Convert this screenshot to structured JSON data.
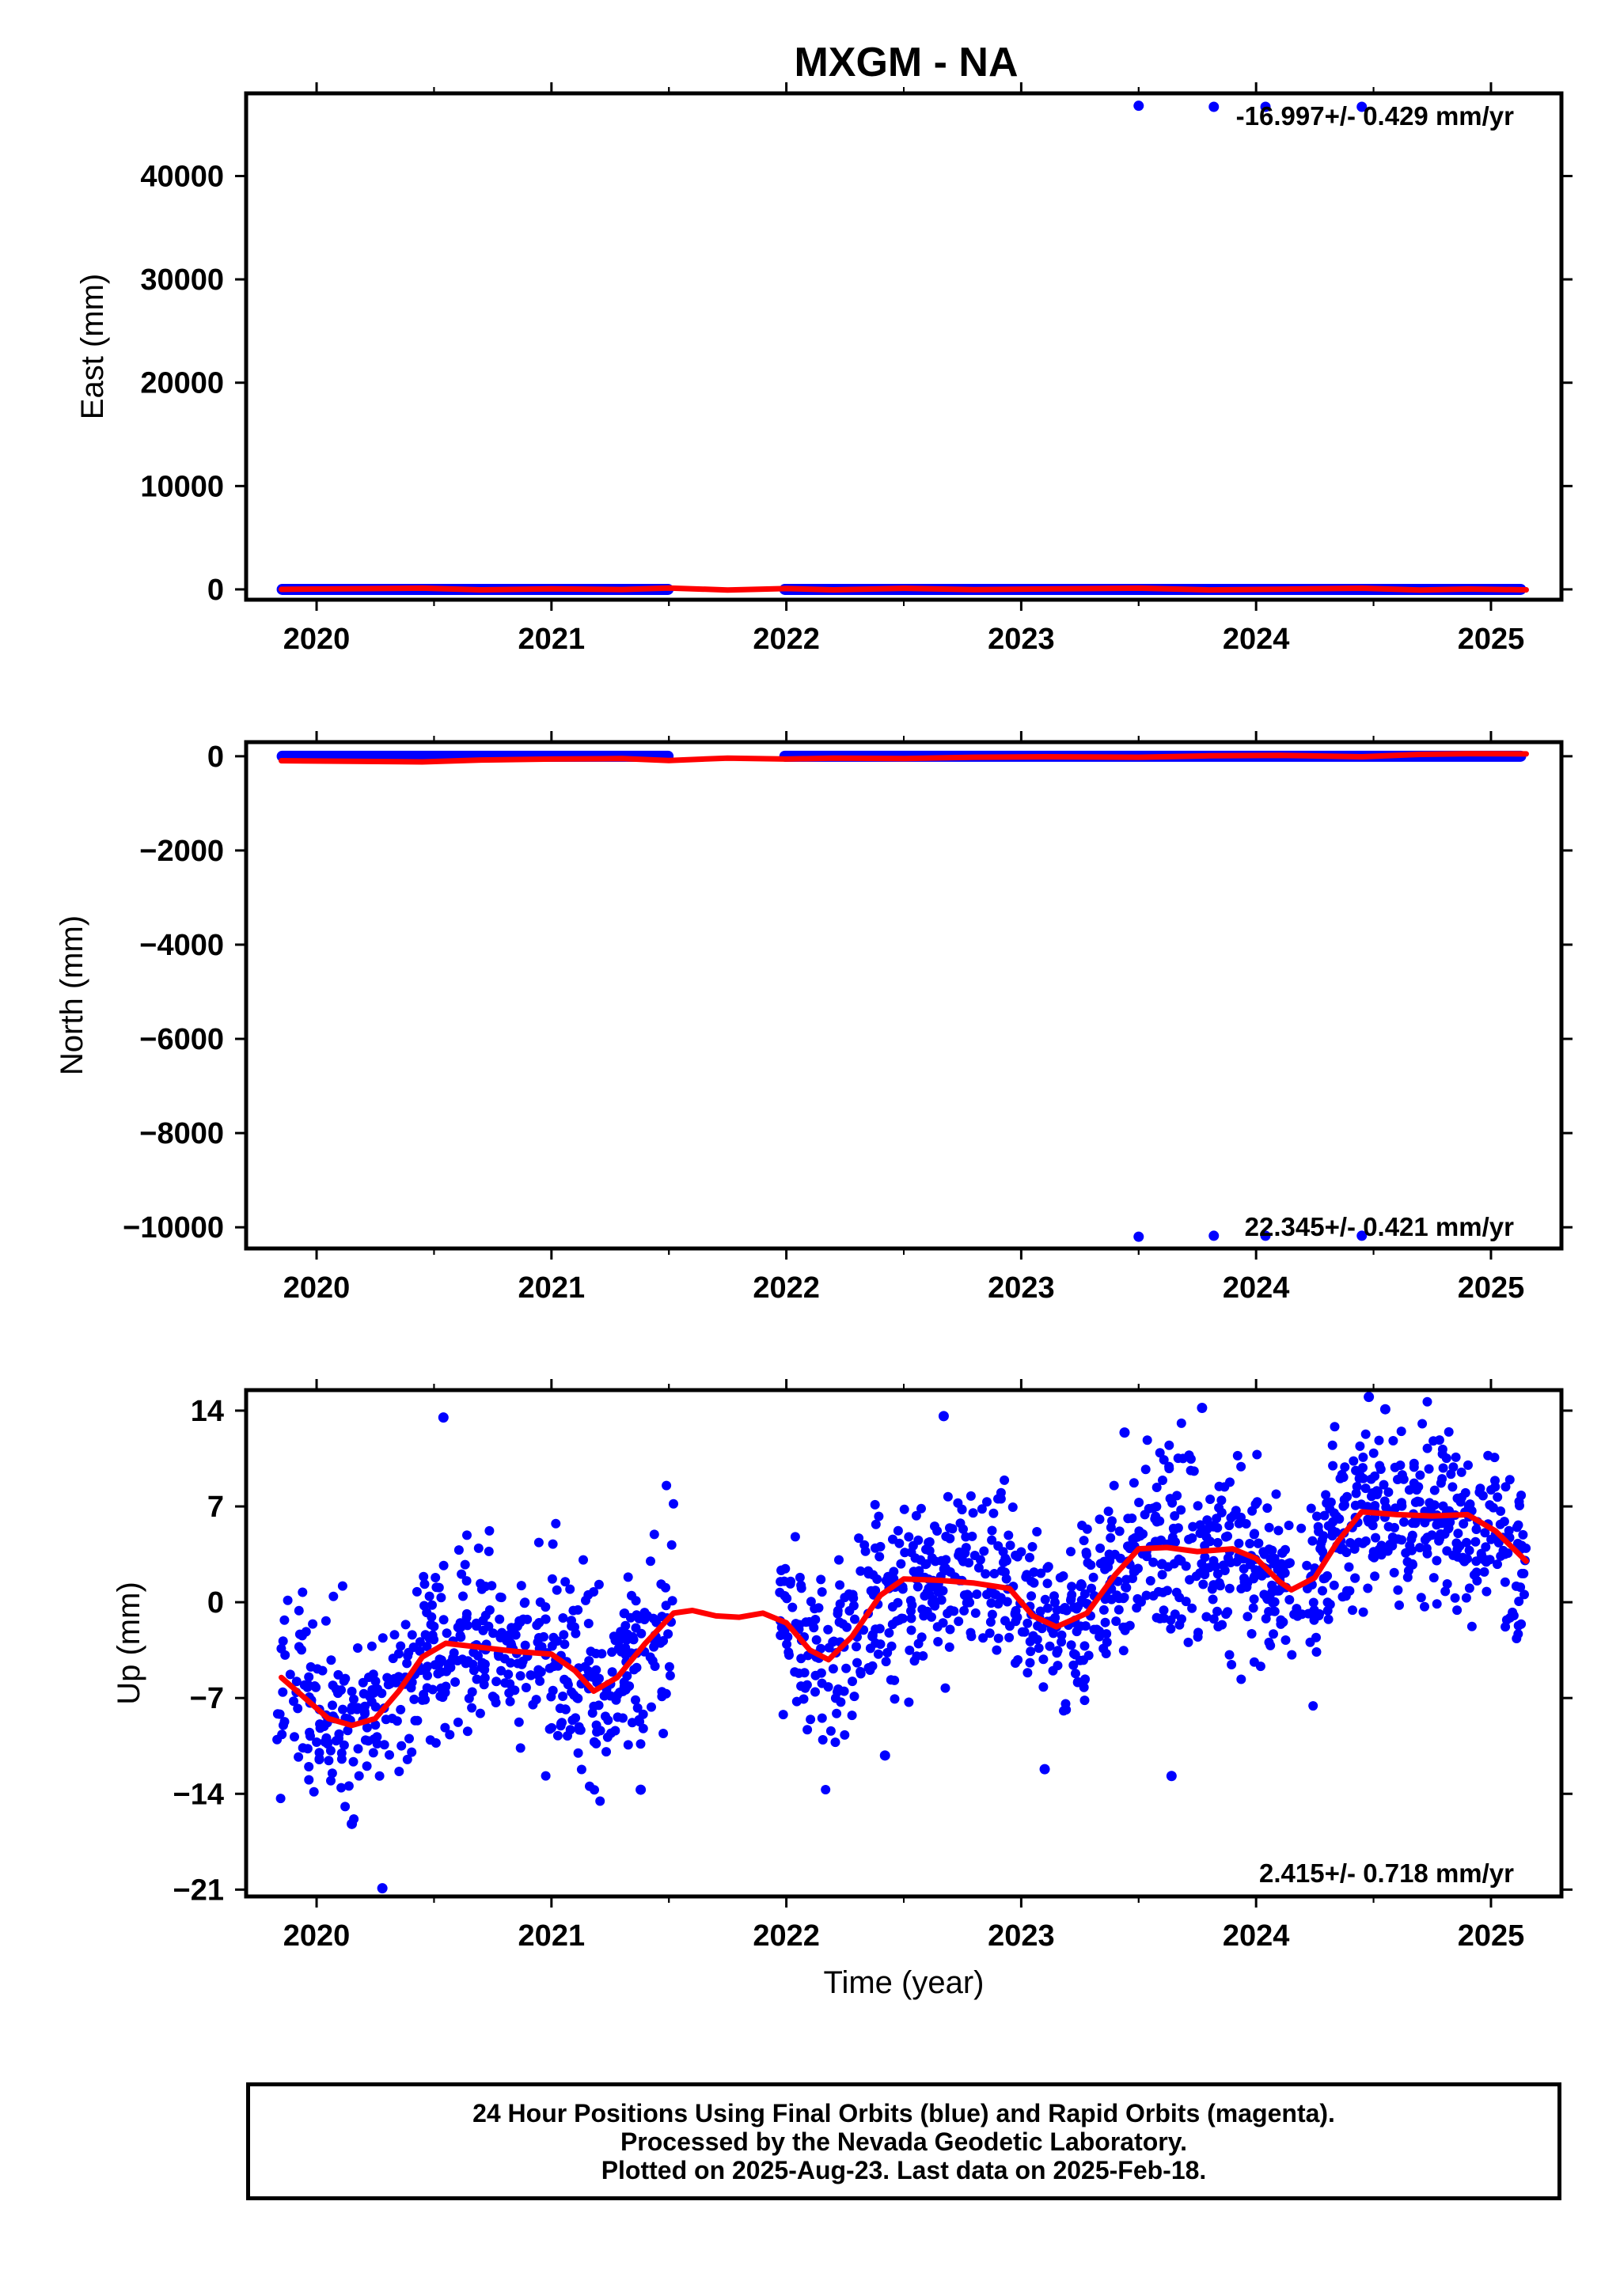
{
  "title": "MXGM - NA",
  "colors": {
    "points": "#0000ff",
    "fit": "#ff0000",
    "frame": "#000000"
  },
  "footer": {
    "line1": "24 Hour Positions Using Final Orbits (blue) and Rapid Orbits (magenta).",
    "line2": "Processed by the Nevada Geodetic Laboratory.",
    "line3": "Plotted on 2025-Aug-23. Last data on 2025-Feb-18."
  },
  "chart_data": [
    {
      "type": "scatter",
      "name": "east",
      "ylabel": "East (mm)",
      "xlabel": "",
      "xlim": [
        2019.7,
        2025.3
      ],
      "ylim": [
        -1000,
        48000
      ],
      "xticks": [
        2020,
        2021,
        2022,
        2023,
        2024,
        2025
      ],
      "yticks": [
        0,
        10000,
        20000,
        30000,
        40000
      ],
      "ytick_labels": [
        "0",
        "10000",
        "20000",
        "30000",
        "40000"
      ],
      "rate_label": "-16.997+/- 0.429 mm/yr",
      "series_band": {
        "segments": [
          [
            2019.83,
            2021.52
          ],
          [
            2021.97,
            2025.15
          ]
        ],
        "y": 0
      },
      "outliers": [
        [
          2023.5,
          46800
        ],
        [
          2023.82,
          46700
        ],
        [
          2024.04,
          46700
        ],
        [
          2024.45,
          46700
        ]
      ],
      "fit": [
        [
          2019.85,
          0
        ],
        [
          2020.45,
          120
        ],
        [
          2020.7,
          -40
        ],
        [
          2021.0,
          60
        ],
        [
          2021.3,
          -10
        ],
        [
          2021.5,
          130
        ],
        [
          2021.75,
          -60
        ],
        [
          2022.0,
          80
        ],
        [
          2022.2,
          -40
        ],
        [
          2022.5,
          100
        ],
        [
          2022.8,
          -20
        ],
        [
          2023.1,
          40
        ],
        [
          2023.5,
          120
        ],
        [
          2023.8,
          -50
        ],
        [
          2024.1,
          20
        ],
        [
          2024.45,
          110
        ],
        [
          2024.7,
          -60
        ],
        [
          2024.9,
          30
        ],
        [
          2025.15,
          -40
        ]
      ]
    },
    {
      "type": "scatter",
      "name": "north",
      "ylabel": "North (mm)",
      "xlabel": "",
      "xlim": [
        2019.7,
        2025.3
      ],
      "ylim": [
        -10450,
        300
      ],
      "xticks": [
        2020,
        2021,
        2022,
        2023,
        2024,
        2025
      ],
      "yticks": [
        0,
        -2000,
        -4000,
        -6000,
        -8000,
        -10000
      ],
      "ytick_labels": [
        "0",
        "−2000",
        "−4000",
        "−6000",
        "−8000",
        "−10000"
      ],
      "rate_label": "22.345+/- 0.421 mm/yr",
      "series_band": {
        "segments": [
          [
            2019.83,
            2021.52
          ],
          [
            2021.97,
            2025.15
          ]
        ],
        "y": 0
      },
      "outliers": [
        [
          2023.5,
          -10200
        ],
        [
          2023.82,
          -10180
        ],
        [
          2024.04,
          -10180
        ],
        [
          2024.45,
          -10180
        ]
      ],
      "fit": [
        [
          2019.85,
          -95
        ],
        [
          2020.45,
          -120
        ],
        [
          2020.7,
          -80
        ],
        [
          2021.0,
          -60
        ],
        [
          2021.3,
          -50
        ],
        [
          2021.5,
          -90
        ],
        [
          2021.75,
          -40
        ],
        [
          2022.0,
          -60
        ],
        [
          2022.2,
          -40
        ],
        [
          2022.5,
          -50
        ],
        [
          2022.8,
          -20
        ],
        [
          2023.1,
          -10
        ],
        [
          2023.5,
          -20
        ],
        [
          2023.8,
          10
        ],
        [
          2024.1,
          20
        ],
        [
          2024.45,
          -10
        ],
        [
          2024.7,
          40
        ],
        [
          2024.9,
          55
        ],
        [
          2025.15,
          50
        ]
      ]
    },
    {
      "type": "scatter",
      "name": "up",
      "ylabel": "Up (mm)",
      "xlabel": "Time (year)",
      "xlim": [
        2019.7,
        2025.3
      ],
      "ylim": [
        -21.5,
        15.5
      ],
      "xticks": [
        2020,
        2021,
        2022,
        2023,
        2024,
        2025
      ],
      "yticks": [
        14,
        7,
        0,
        -7,
        -14,
        -21
      ],
      "ytick_labels": [
        "14",
        "7",
        "0",
        "−7",
        "−14",
        "−21"
      ],
      "rate_label": "2.415+/- 0.718 mm/yr",
      "scatter_model": {
        "segments": [
          [
            2019.83,
            2021.52
          ],
          [
            2021.97,
            2025.15
          ]
        ],
        "n": 1650,
        "noise": 3.2,
        "seed": 7
      },
      "extra_points": [
        [
          2020.28,
          -20.9
        ],
        [
          2020.54,
          13.5
        ],
        [
          2021.38,
          -13.7
        ],
        [
          2022.42,
          -11.2
        ],
        [
          2022.67,
          13.6
        ],
        [
          2023.1,
          -12.2
        ],
        [
          2023.64,
          -12.7
        ],
        [
          2023.44,
          12.4
        ],
        [
          2024.48,
          15.0
        ],
        [
          2024.55,
          14.1
        ],
        [
          2023.77,
          14.2
        ],
        [
          2020.15,
          -16.2
        ]
      ],
      "fit": [
        [
          2019.85,
          -5.5
        ],
        [
          2019.95,
          -7.0
        ],
        [
          2020.05,
          -8.5
        ],
        [
          2020.15,
          -9.0
        ],
        [
          2020.25,
          -8.5
        ],
        [
          2020.35,
          -6.5
        ],
        [
          2020.45,
          -4.0
        ],
        [
          2020.55,
          -3.0
        ],
        [
          2020.7,
          -3.3
        ],
        [
          2020.85,
          -3.6
        ],
        [
          2021.0,
          -3.8
        ],
        [
          2021.1,
          -5.0
        ],
        [
          2021.18,
          -6.5
        ],
        [
          2021.28,
          -5.5
        ],
        [
          2021.4,
          -3.0
        ],
        [
          2021.52,
          -0.8
        ],
        [
          2021.6,
          -0.6
        ],
        [
          2021.7,
          -1.0
        ],
        [
          2021.8,
          -1.1
        ],
        [
          2021.9,
          -0.8
        ],
        [
          2022.0,
          -1.5
        ],
        [
          2022.1,
          -3.5
        ],
        [
          2022.18,
          -4.2
        ],
        [
          2022.28,
          -2.5
        ],
        [
          2022.4,
          0.5
        ],
        [
          2022.5,
          1.7
        ],
        [
          2022.65,
          1.6
        ],
        [
          2022.8,
          1.4
        ],
        [
          2022.95,
          1.0
        ],
        [
          2023.05,
          -1.0
        ],
        [
          2023.15,
          -1.8
        ],
        [
          2023.28,
          -0.8
        ],
        [
          2023.4,
          2.0
        ],
        [
          2023.5,
          3.9
        ],
        [
          2023.62,
          4.0
        ],
        [
          2023.75,
          3.7
        ],
        [
          2023.9,
          3.9
        ],
        [
          2024.0,
          3.2
        ],
        [
          2024.1,
          1.5
        ],
        [
          2024.15,
          0.9
        ],
        [
          2024.25,
          1.8
        ],
        [
          2024.35,
          4.5
        ],
        [
          2024.45,
          6.6
        ],
        [
          2024.6,
          6.4
        ],
        [
          2024.75,
          6.3
        ],
        [
          2024.9,
          6.4
        ],
        [
          2025.02,
          5.2
        ],
        [
          2025.15,
          3.0
        ]
      ]
    }
  ]
}
